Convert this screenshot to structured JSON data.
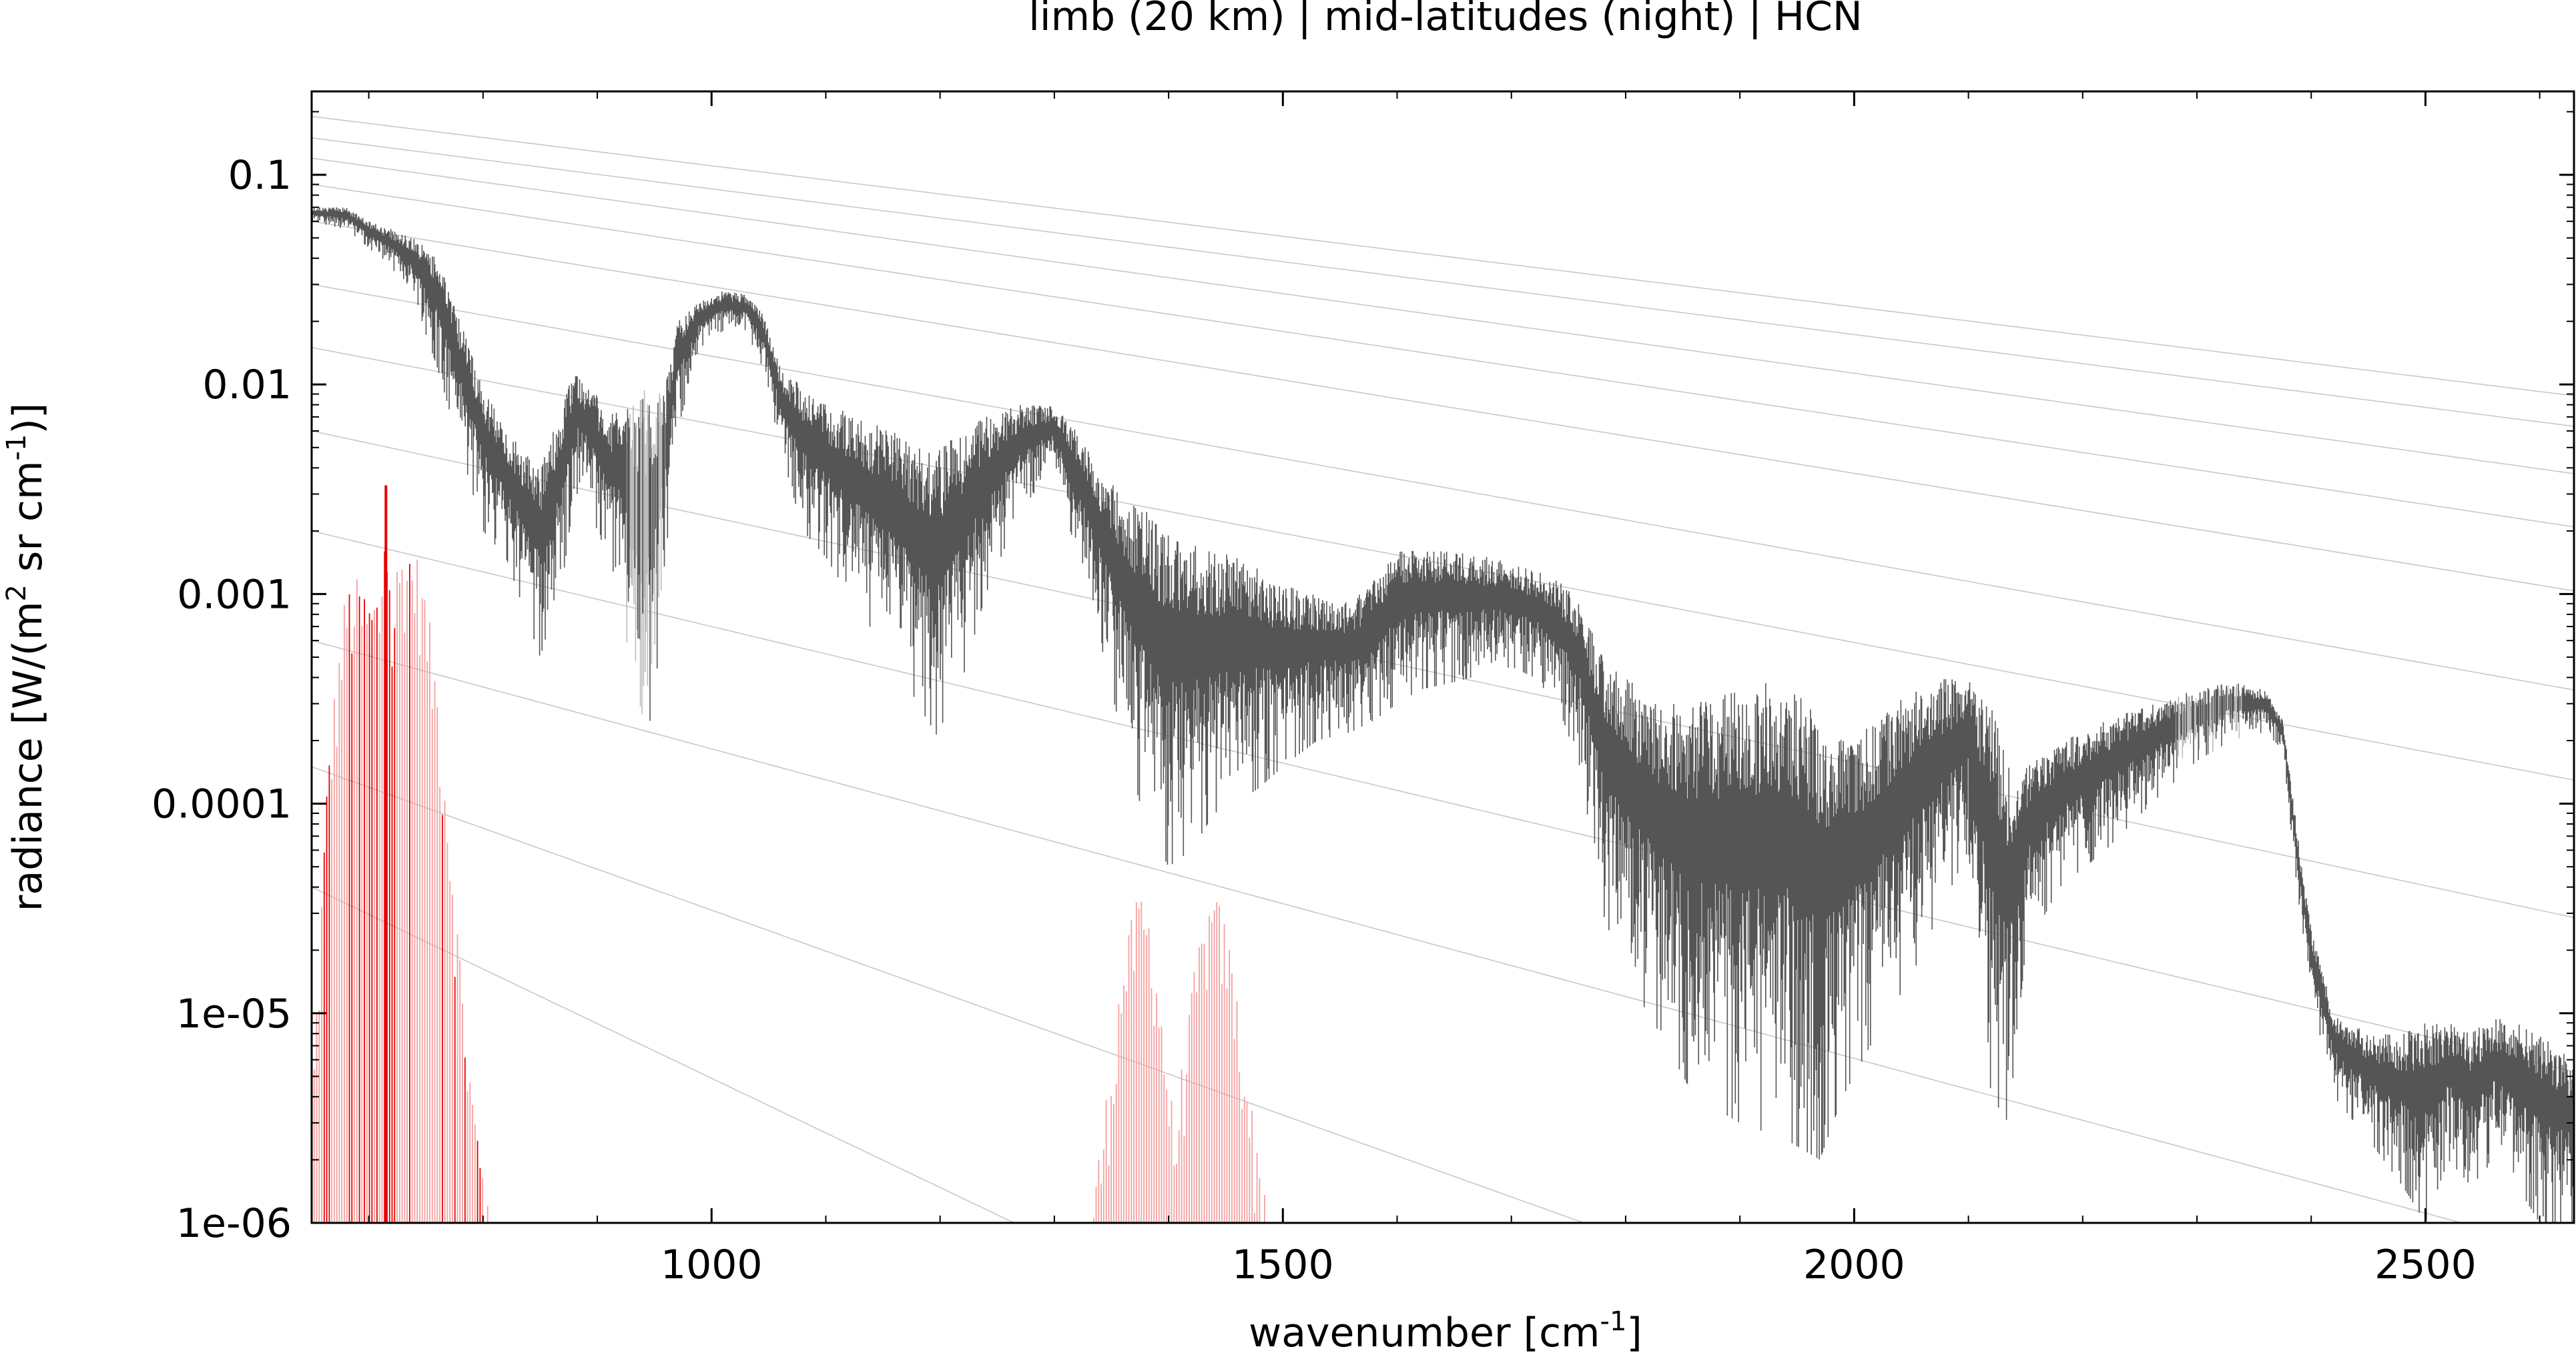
{
  "chart_data": {
    "type": "line",
    "title": "limb (20 km) | mid-latitudes (night) | HCN",
    "xlabel": "wavenumber [cm",
    "xlabel_sup": "-1",
    "xlabel_end": "]",
    "ylabel_parts": [
      "radiance [W/(m",
      "2",
      " sr cm",
      "-1",
      ")]"
    ],
    "xlim": [
      650,
      2630
    ],
    "ylim": [
      1e-06,
      0.25
    ],
    "yscale": "log",
    "grid": false,
    "x_ticks": [
      1000,
      1500,
      2000,
      2500
    ],
    "x_tick_labels": [
      "1000",
      "1500",
      "2000",
      "2500"
    ],
    "y_ticks": [
      0.1,
      0.01,
      0.001,
      0.0001,
      1e-05,
      1e-06
    ],
    "y_tick_labels": [
      "0.1",
      "0.01",
      "0.001",
      "0.0001",
      "1e-05",
      "1e-06"
    ],
    "colors": {
      "total_radiance": "#555555",
      "total_radiance_light": "#bbbbbb",
      "hcn_contribution": "#e80000",
      "hcn_contribution_light": "#f4a0a0",
      "planck_reference": "#c8c8c8"
    },
    "series": [
      {
        "role": "total_radiance",
        "x": [
          650,
          680,
          700,
          720,
          740,
          760,
          780,
          800,
          820,
          850,
          870,
          880,
          890,
          900,
          910,
          920,
          930,
          940,
          950,
          960,
          970,
          990,
          1010,
          1030,
          1045,
          1060,
          1080,
          1100,
          1130,
          1160,
          1180,
          1200,
          1220,
          1240,
          1270,
          1300,
          1320,
          1340,
          1360,
          1380,
          1400,
          1420,
          1440,
          1460,
          1480,
          1500,
          1530,
          1560,
          1580,
          1600,
          1620,
          1650,
          1680,
          1700,
          1720,
          1740,
          1760,
          1780,
          1800,
          1830,
          1860,
          1900,
          1940,
          1970,
          1990,
          2020,
          2050,
          2080,
          2100,
          2120,
          2135,
          2150,
          2180,
          2220,
          2260,
          2300,
          2330,
          2360,
          2375,
          2390,
          2400,
          2420,
          2450,
          2480,
          2500,
          2520,
          2540,
          2560,
          2580,
          2600,
          2630
        ],
        "y_upper": [
          0.07,
          0.07,
          0.06,
          0.055,
          0.05,
          0.04,
          0.02,
          0.01,
          0.006,
          0.004,
          0.008,
          0.012,
          0.01,
          0.009,
          0.007,
          0.008,
          0.009,
          0.01,
          0.009,
          0.01,
          0.02,
          0.025,
          0.028,
          0.027,
          0.022,
          0.012,
          0.01,
          0.008,
          0.007,
          0.006,
          0.005,
          0.005,
          0.006,
          0.007,
          0.008,
          0.008,
          0.006,
          0.004,
          0.003,
          0.0025,
          0.002,
          0.0018,
          0.0016,
          0.0015,
          0.0013,
          0.0011,
          0.001,
          0.0009,
          0.0012,
          0.0016,
          0.0017,
          0.0016,
          0.0015,
          0.0014,
          0.0013,
          0.0012,
          0.0009,
          0.0005,
          0.0004,
          0.0003,
          0.0003,
          0.00035,
          0.0004,
          0.00025,
          0.0002,
          0.00025,
          0.00035,
          0.0004,
          0.0004,
          0.0003,
          0.00015,
          0.00015,
          0.0002,
          0.00025,
          0.0003,
          0.00035,
          0.00038,
          0.00035,
          0.00025,
          6e-05,
          2.5e-05,
          1e-05,
          8e-06,
          8e-06,
          9e-06,
          9e-06,
          8e-06,
          1e-05,
          9e-06,
          8e-06,
          6e-06
        ],
        "y_lower": [
          0.06,
          0.055,
          0.045,
          0.035,
          0.025,
          0.012,
          0.005,
          0.002,
          0.0015,
          0.0005,
          0.0012,
          0.003,
          0.003,
          0.002,
          0.0015,
          0.001,
          0.0004,
          0.0001,
          0.0003,
          0.0015,
          0.006,
          0.015,
          0.018,
          0.018,
          0.012,
          0.005,
          0.002,
          0.0015,
          0.0008,
          0.0005,
          0.0003,
          0.0002,
          0.0004,
          0.001,
          0.0025,
          0.004,
          0.0015,
          0.0006,
          0.0002,
          8e-05,
          5e-05,
          6e-05,
          9e-05,
          0.0001,
          0.00012,
          0.00015,
          0.0002,
          0.00022,
          0.00025,
          0.0003,
          0.00035,
          0.00038,
          0.00042,
          0.00045,
          0.0004,
          0.0003,
          0.00015,
          3e-05,
          1.5e-05,
          8e-06,
          4e-06,
          3e-06,
          2.5e-06,
          2e-06,
          4e-06,
          8e-06,
          1.5e-05,
          3.5e-05,
          6e-05,
          4e-06,
          3e-06,
          2e-05,
          4e-05,
          6e-05,
          0.0001,
          0.00016,
          0.0002,
          0.00022,
          0.00018,
          3e-05,
          1.2e-05,
          4e-06,
          2.5e-06,
          1.5e-06,
          1e-06,
          2e-06,
          1.5e-06,
          2e-06,
          1.5e-06,
          1e-06,
          1e-06
        ]
      },
      {
        "role": "hcn_contribution",
        "x": [
          650,
          665,
          680,
          690,
          700,
          710,
          715,
          720,
          725,
          730,
          735,
          740,
          745,
          750,
          760,
          770,
          780,
          790,
          800,
          810,
          1330,
          1345,
          1360,
          1375,
          1385,
          1395,
          1405,
          1415,
          1425,
          1435,
          1445,
          1455,
          1465,
          1475,
          1490
        ],
        "y": [
          4e-06,
          0.0002,
          0.0011,
          0.0012,
          0.001,
          0.0011,
          0.0033,
          0.0008,
          0.0015,
          0.0018,
          0.0018,
          0.0017,
          0.0014,
          0.001,
          0.0004,
          0.0001,
          2e-05,
          5e-06,
          2e-06,
          1e-06,
          1e-06,
          4e-06,
          2e-05,
          4e-05,
          3e-05,
          1e-05,
          3e-06,
          8e-06,
          2e-05,
          3.5e-05,
          3.5e-05,
          2e-05,
          8e-06,
          3e-06,
          1e-06
        ]
      }
    ],
    "reference_curves": [
      {
        "y_start": 0.19,
        "k": 0.00155
      },
      {
        "y_start": 0.15,
        "k": 0.0016
      },
      {
        "y_start": 0.12,
        "k": 0.00175
      },
      {
        "y_start": 0.09,
        "k": 0.0019
      },
      {
        "y_start": 0.06,
        "k": 0.00205
      },
      {
        "y_start": 0.03,
        "k": 0.00225
      },
      {
        "y_start": 0.015,
        "k": 0.0024
      },
      {
        "y_start": 0.006,
        "k": 0.0027
      },
      {
        "y_start": 0.002,
        "k": 0.003
      },
      {
        "y_start": 0.0006,
        "k": 0.0034
      },
      {
        "y_start": 0.00015,
        "k": 0.0045
      },
      {
        "y_start": 4e-05,
        "k": 0.006
      }
    ]
  }
}
